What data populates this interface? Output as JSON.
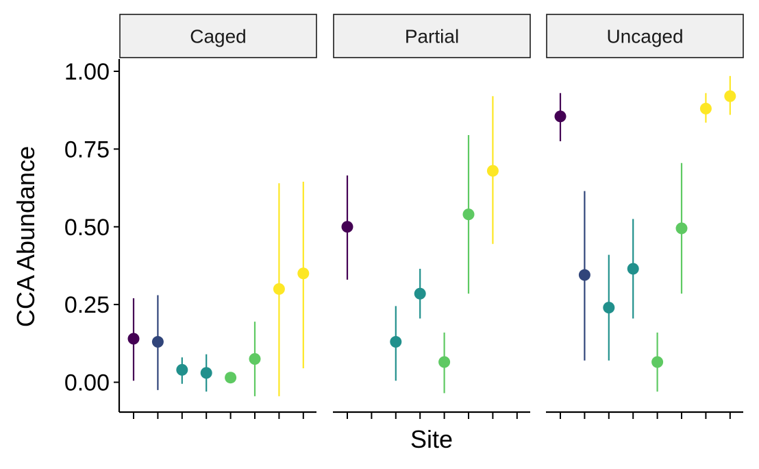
{
  "chart_data": {
    "type": "scatter",
    "subtype": "point-range facets",
    "xlabel": "Site",
    "ylabel": "CCA Abundance",
    "ylim": [
      -0.09,
      1.04
    ],
    "yticks": [
      0.0,
      0.25,
      0.5,
      0.75,
      1.0
    ],
    "ytick_labels": [
      "0.00",
      "0.25",
      "0.50",
      "0.75",
      "1.00"
    ],
    "n_sites": 8,
    "grid": false,
    "legend": "none",
    "site_colors": [
      "#440154",
      "#31457a",
      "#21908c",
      "#21908c",
      "#5ec962",
      "#5ec962",
      "#fde725",
      "#fde725"
    ],
    "strip_fill": "#f0f0f0",
    "panels": [
      {
        "name": "Caged",
        "points": [
          {
            "site": 1,
            "y": 0.14,
            "lo": 0.005,
            "hi": 0.27
          },
          {
            "site": 2,
            "y": 0.13,
            "lo": -0.025,
            "hi": 0.28
          },
          {
            "site": 3,
            "y": 0.04,
            "lo": -0.005,
            "hi": 0.08
          },
          {
            "site": 4,
            "y": 0.03,
            "lo": -0.03,
            "hi": 0.09
          },
          {
            "site": 5,
            "y": 0.015,
            "lo": null,
            "hi": null
          },
          {
            "site": 6,
            "y": 0.075,
            "lo": -0.045,
            "hi": 0.195
          },
          {
            "site": 7,
            "y": 0.3,
            "lo": -0.045,
            "hi": 0.64
          },
          {
            "site": 8,
            "y": 0.35,
            "lo": 0.045,
            "hi": 0.645
          }
        ]
      },
      {
        "name": "Partial",
        "points": [
          {
            "site": 1,
            "y": 0.5,
            "lo": 0.33,
            "hi": 0.665
          },
          {
            "site": 3,
            "y": 0.13,
            "lo": 0.005,
            "hi": 0.245
          },
          {
            "site": 4,
            "y": 0.285,
            "lo": 0.205,
            "hi": 0.365
          },
          {
            "site": 5,
            "y": 0.065,
            "lo": -0.035,
            "hi": 0.16
          },
          {
            "site": 6,
            "y": 0.54,
            "lo": 0.285,
            "hi": 0.795
          },
          {
            "site": 7,
            "y": 0.68,
            "lo": 0.445,
            "hi": 0.92
          }
        ]
      },
      {
        "name": "Uncaged",
        "points": [
          {
            "site": 1,
            "y": 0.855,
            "lo": 0.775,
            "hi": 0.93
          },
          {
            "site": 2,
            "y": 0.345,
            "lo": 0.07,
            "hi": 0.615
          },
          {
            "site": 3,
            "y": 0.24,
            "lo": 0.07,
            "hi": 0.41
          },
          {
            "site": 4,
            "y": 0.365,
            "lo": 0.205,
            "hi": 0.525
          },
          {
            "site": 5,
            "y": 0.065,
            "lo": -0.03,
            "hi": 0.16
          },
          {
            "site": 6,
            "y": 0.495,
            "lo": 0.285,
            "hi": 0.705
          },
          {
            "site": 7,
            "y": 0.88,
            "lo": 0.835,
            "hi": 0.93
          },
          {
            "site": 8,
            "y": 0.92,
            "lo": 0.86,
            "hi": 0.985
          }
        ]
      }
    ]
  }
}
